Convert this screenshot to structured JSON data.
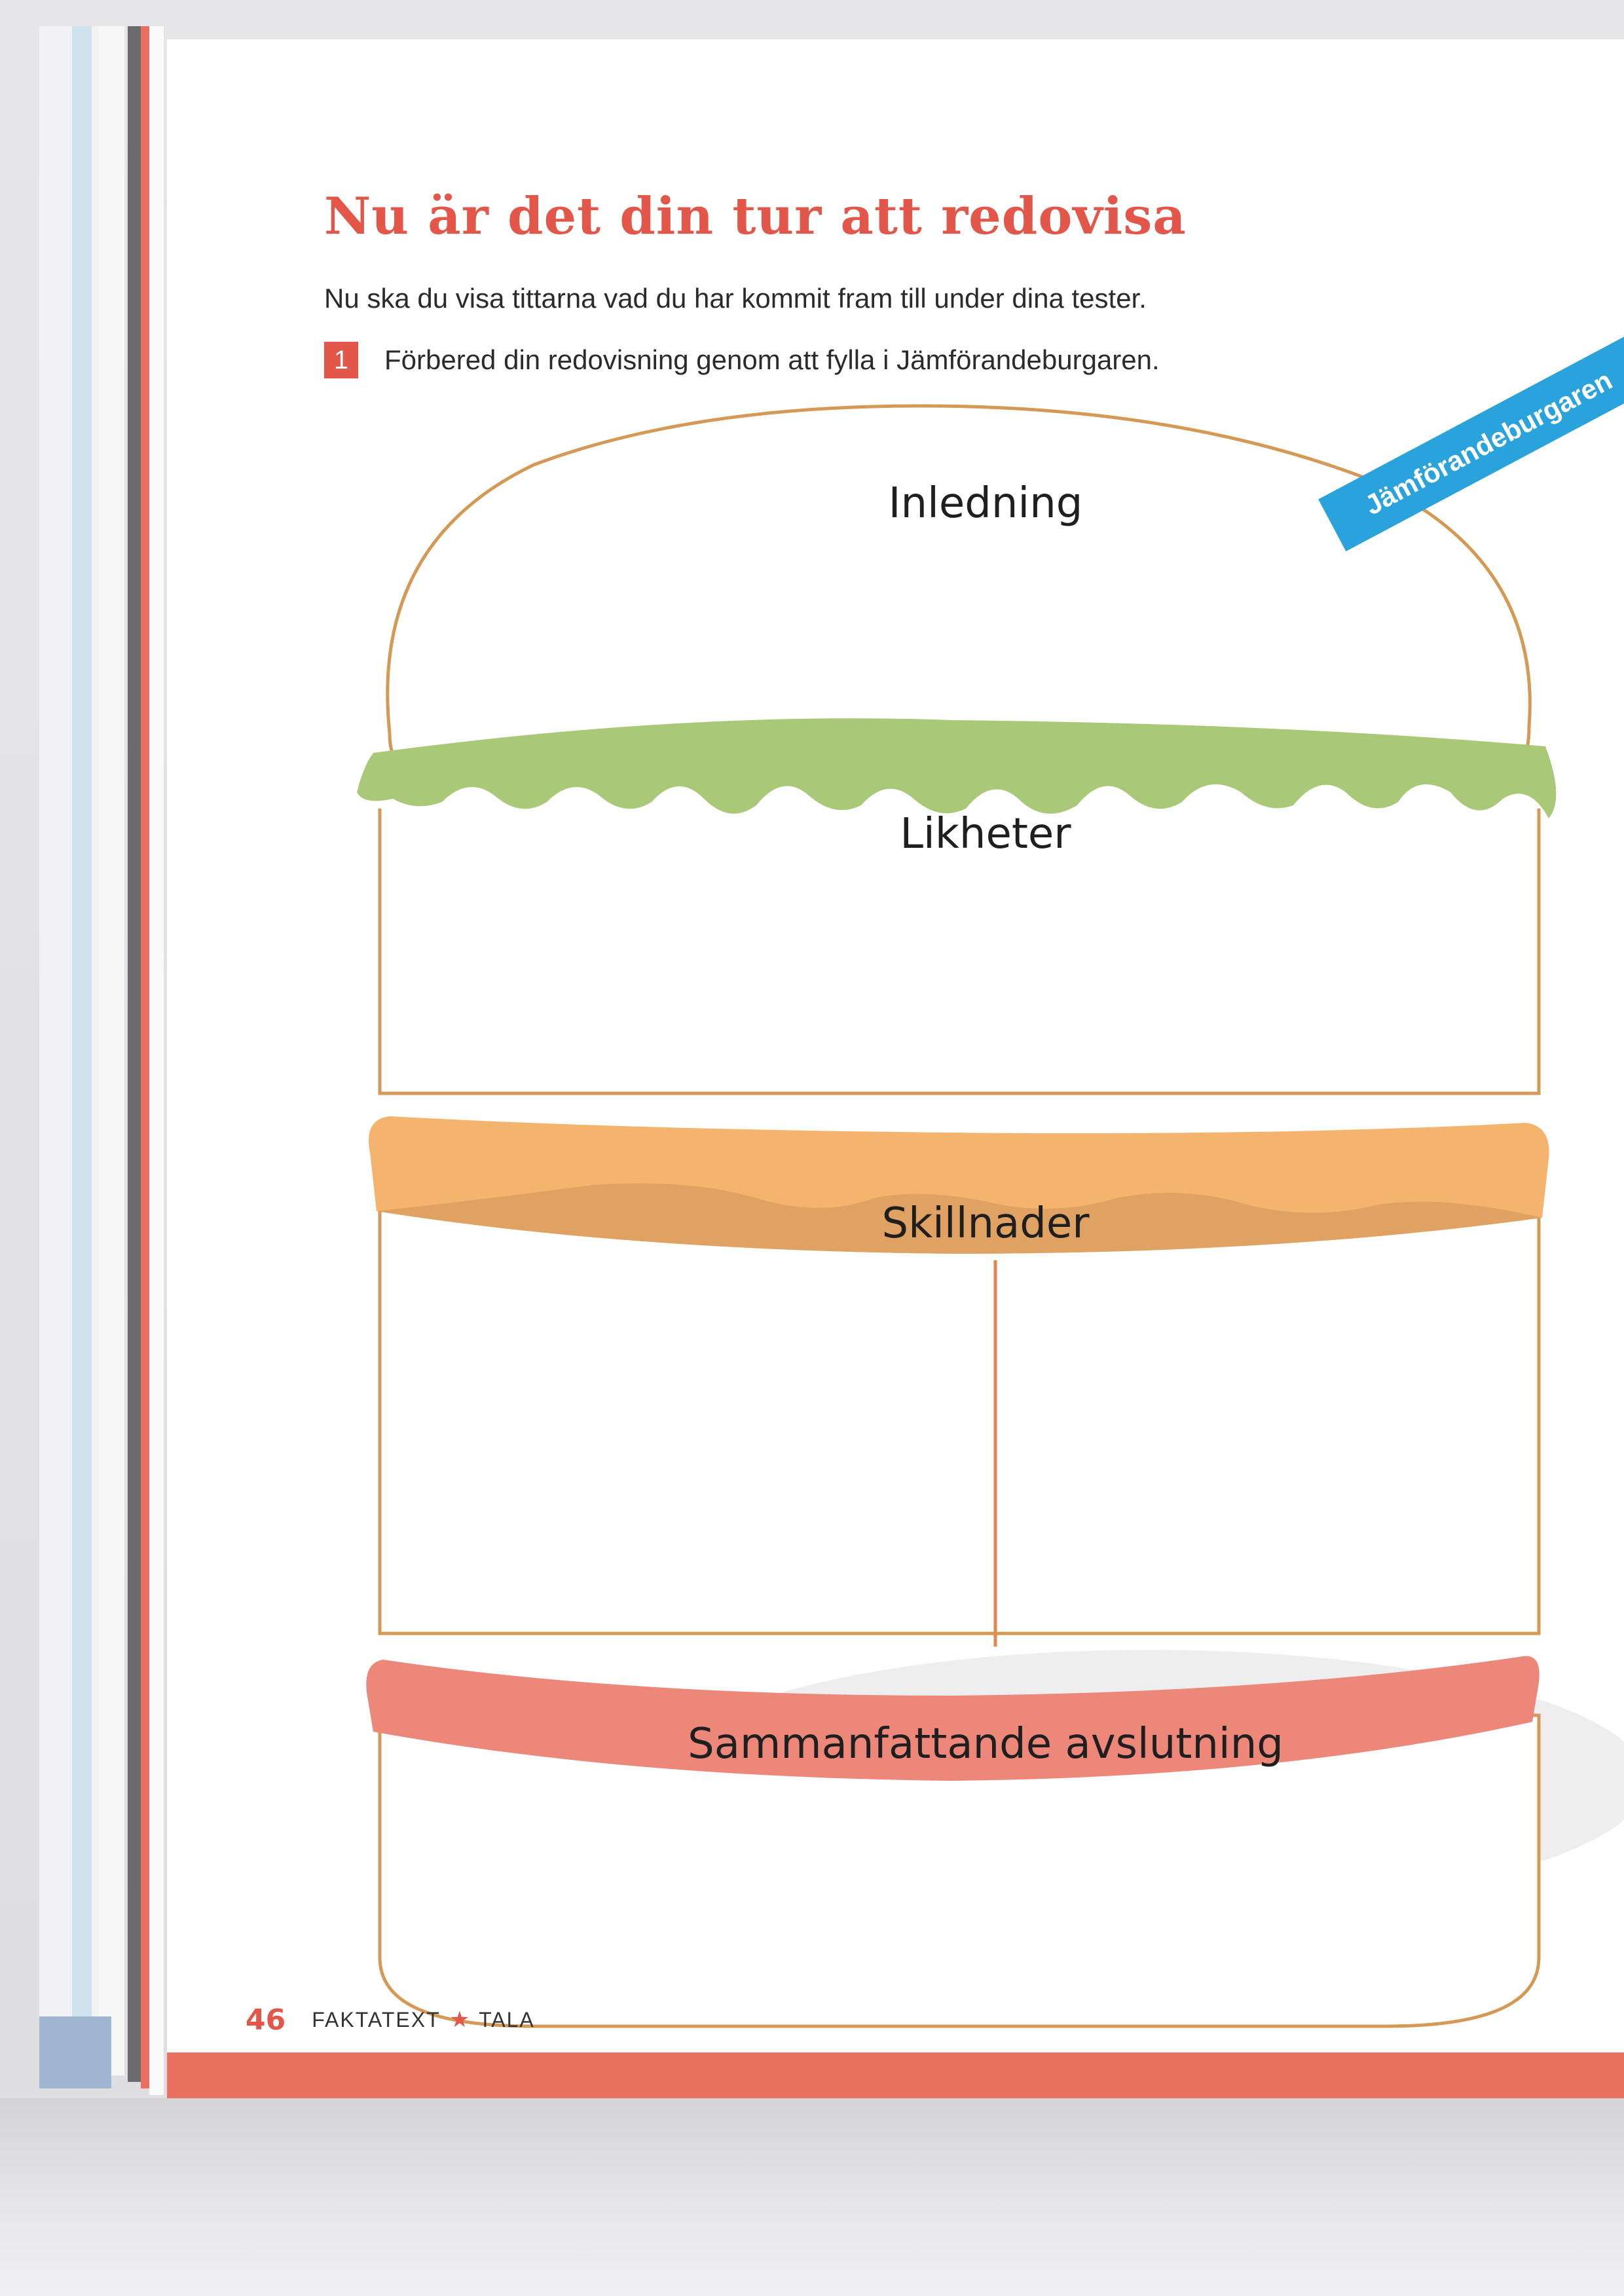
{
  "page": {
    "title": "Nu är det din tur att redovisa",
    "intro": "Nu ska du visa tittarna vad du har kommit fram till under dina tester.",
    "task": {
      "number": "1",
      "text": "Förbered din redovisning genom att fylla i Jämförandeburgaren."
    }
  },
  "burger": {
    "ribbon_label": "Jämförandeburgaren",
    "sections": {
      "intro": "Inledning",
      "similarities": "Likheter",
      "differences": "Skillnader",
      "conclusion": "Sammanfattande avslutning"
    }
  },
  "footer": {
    "page_number": "46",
    "section": "FAKTATEXT",
    "separator_icon": "star-icon",
    "subsection": "TALA"
  },
  "colors": {
    "accent": "#e2574a",
    "bun_outline": "#d49a55",
    "lettuce": "#a9c978",
    "cheese": "#f5b46d",
    "cheese_dark": "#e0a262",
    "tomato": "#ec877a",
    "ribbon": "#2aa3dc"
  }
}
